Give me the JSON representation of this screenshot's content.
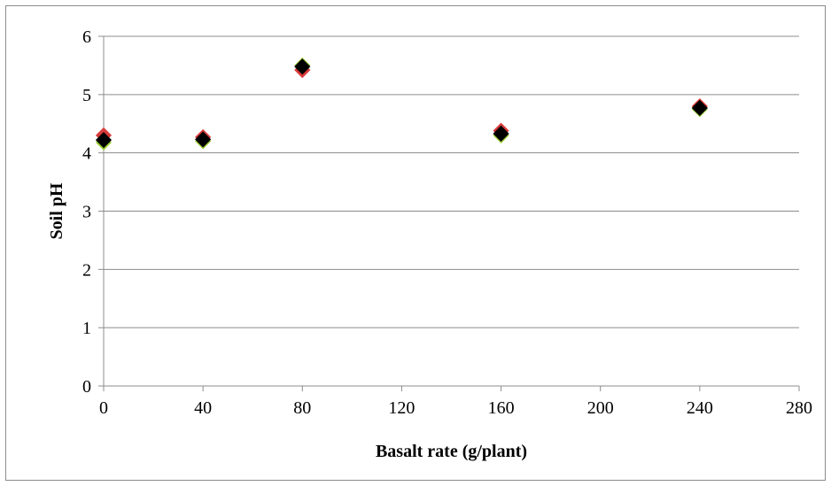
{
  "chart_data": {
    "type": "scatter",
    "title": "",
    "xlabel": "Basalt rate (g/plant)",
    "ylabel": "Soil pH",
    "xlim": [
      0,
      280
    ],
    "ylim": [
      0,
      6
    ],
    "xticks": [
      0,
      40,
      80,
      120,
      160,
      200,
      240,
      280
    ],
    "yticks": [
      0,
      1,
      2,
      3,
      4,
      5,
      6
    ],
    "grid": "horizontal",
    "legend": "none",
    "series": [
      {
        "x": [
          0,
          40,
          80,
          160,
          240
        ],
        "y": [
          4.3,
          4.27,
          5.42,
          4.38,
          4.8
        ],
        "color": "#d83a3a",
        "marker": "diamond"
      },
      {
        "x": [
          0,
          40,
          80,
          160,
          240
        ],
        "y": [
          4.18,
          4.2,
          5.5,
          4.3,
          4.75
        ],
        "color": "#9acd32",
        "marker": "diamond"
      },
      {
        "x": [
          0,
          40,
          80,
          160,
          240
        ],
        "y": [
          4.22,
          4.23,
          5.48,
          4.33,
          4.77
        ],
        "color": "#000000",
        "marker": "diamond"
      }
    ],
    "colors": {
      "grid": "#8c8c8c",
      "axis": "#8c8c8c"
    }
  }
}
